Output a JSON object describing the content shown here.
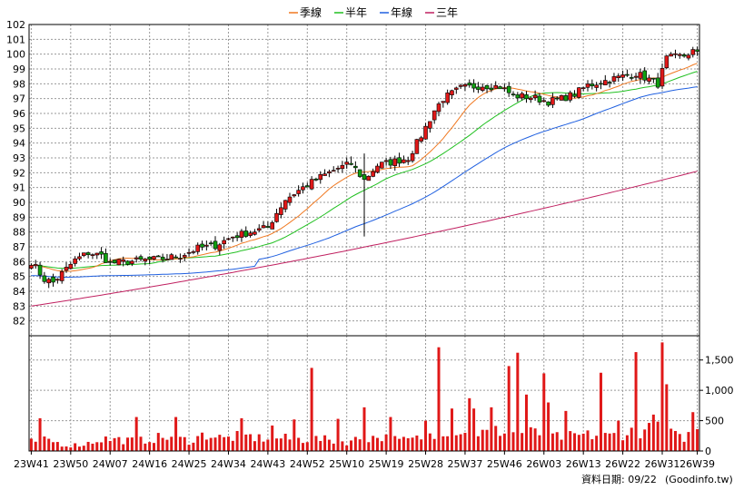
{
  "chart_data": {
    "type": "candlestick",
    "legend": {
      "placement": "top-center",
      "items": [
        {
          "key": "ma_quarter",
          "label": "季線",
          "color": "#f07820"
        },
        {
          "key": "ma_half",
          "label": "半年",
          "color": "#20c020"
        },
        {
          "key": "ma_year",
          "label": "年線",
          "color": "#2060e0"
        },
        {
          "key": "ma_3y",
          "label": "三年",
          "color": "#c02060"
        }
      ]
    },
    "price_axis": {
      "min": 81,
      "max": 102,
      "ticks": [
        82,
        83,
        84,
        85,
        86,
        87,
        88,
        89,
        90,
        91,
        92,
        93,
        94,
        95,
        96,
        97,
        98,
        99,
        100,
        101,
        102
      ]
    },
    "volume_axis": {
      "min": 0,
      "max": 1900,
      "ticks": [
        0,
        500,
        1000,
        1500
      ],
      "tick_labels": [
        "0",
        "500",
        "1,000",
        "1,500"
      ]
    },
    "x_labels": [
      {
        "index": 0,
        "label": "23W41"
      },
      {
        "index": 9,
        "label": "23W50"
      },
      {
        "index": 18,
        "label": "24W07"
      },
      {
        "index": 27,
        "label": "24W16"
      },
      {
        "index": 36,
        "label": "24W25"
      },
      {
        "index": 45,
        "label": "24W34"
      },
      {
        "index": 54,
        "label": "24W43"
      },
      {
        "index": 63,
        "label": "24W52"
      },
      {
        "index": 72,
        "label": "25W10"
      },
      {
        "index": 81,
        "label": "25W19"
      },
      {
        "index": 90,
        "label": "25W28"
      },
      {
        "index": 99,
        "label": "25W37"
      },
      {
        "index": 108,
        "label": "25W46"
      },
      {
        "index": 117,
        "label": "26W03"
      },
      {
        "index": 126,
        "label": "26W13"
      },
      {
        "index": 135,
        "label": "26W22"
      },
      {
        "index": 144,
        "label": "26W31"
      },
      {
        "index": 152,
        "label": "26W39"
      }
    ],
    "weeks": 153,
    "close_anchors": [
      [
        0,
        86.0
      ],
      [
        3,
        84.8
      ],
      [
        5,
        84.6
      ],
      [
        8,
        85.5
      ],
      [
        10,
        86.1
      ],
      [
        13,
        86.6
      ],
      [
        16,
        86.4
      ],
      [
        18,
        85.9
      ],
      [
        22,
        86.0
      ],
      [
        26,
        86.1
      ],
      [
        30,
        86.2
      ],
      [
        34,
        86.4
      ],
      [
        38,
        86.9
      ],
      [
        42,
        87.1
      ],
      [
        46,
        87.7
      ],
      [
        50,
        88.0
      ],
      [
        54,
        88.3
      ],
      [
        56,
        89.3
      ],
      [
        58,
        90.2
      ],
      [
        62,
        91.0
      ],
      [
        66,
        91.7
      ],
      [
        70,
        92.3
      ],
      [
        73,
        92.6
      ],
      [
        76,
        91.5
      ],
      [
        79,
        92.5
      ],
      [
        82,
        92.7
      ],
      [
        86,
        93.0
      ],
      [
        89,
        94.5
      ],
      [
        92,
        96.2
      ],
      [
        94,
        97.0
      ],
      [
        98,
        97.7
      ],
      [
        103,
        97.9
      ],
      [
        107,
        97.8
      ],
      [
        110,
        97.2
      ],
      [
        114,
        97.1
      ],
      [
        118,
        96.8
      ],
      [
        121,
        97.0
      ],
      [
        124,
        97.3
      ],
      [
        127,
        97.9
      ],
      [
        131,
        98.2
      ],
      [
        135,
        98.5
      ],
      [
        138,
        98.7
      ],
      [
        141,
        98.3
      ],
      [
        143,
        98.0
      ],
      [
        145,
        99.7
      ],
      [
        149,
        99.9
      ],
      [
        151,
        100.2
      ],
      [
        152,
        100.0
      ]
    ],
    "volume_anchors": [
      [
        0,
        150
      ],
      [
        4,
        180
      ],
      [
        8,
        90
      ],
      [
        12,
        110
      ],
      [
        16,
        200
      ],
      [
        20,
        190
      ],
      [
        24,
        160
      ],
      [
        28,
        210
      ],
      [
        32,
        230
      ],
      [
        36,
        170
      ],
      [
        40,
        280
      ],
      [
        44,
        200
      ],
      [
        48,
        260
      ],
      [
        52,
        210
      ],
      [
        56,
        220
      ],
      [
        60,
        190
      ],
      [
        64,
        200
      ],
      [
        68,
        180
      ],
      [
        72,
        150
      ],
      [
        76,
        220
      ],
      [
        80,
        230
      ],
      [
        84,
        170
      ],
      [
        88,
        200
      ],
      [
        92,
        330
      ],
      [
        96,
        390
      ],
      [
        100,
        320
      ],
      [
        104,
        290
      ],
      [
        108,
        350
      ],
      [
        112,
        320
      ],
      [
        116,
        280
      ],
      [
        120,
        230
      ],
      [
        124,
        250
      ],
      [
        128,
        260
      ],
      [
        132,
        240
      ],
      [
        136,
        310
      ],
      [
        140,
        340
      ],
      [
        144,
        360
      ],
      [
        148,
        210
      ],
      [
        152,
        310
      ]
    ],
    "volume_spikes": [
      [
        2,
        540
      ],
      [
        24,
        560
      ],
      [
        33,
        560
      ],
      [
        48,
        540
      ],
      [
        55,
        420
      ],
      [
        60,
        520
      ],
      [
        64,
        1370
      ],
      [
        70,
        530
      ],
      [
        76,
        720
      ],
      [
        82,
        560
      ],
      [
        90,
        500
      ],
      [
        93,
        1710
      ],
      [
        96,
        700
      ],
      [
        100,
        870
      ],
      [
        101,
        700
      ],
      [
        105,
        720
      ],
      [
        109,
        1400
      ],
      [
        111,
        1620
      ],
      [
        113,
        930
      ],
      [
        117,
        1280
      ],
      [
        118,
        800
      ],
      [
        122,
        660
      ],
      [
        130,
        1290
      ],
      [
        134,
        500
      ],
      [
        138,
        1630
      ],
      [
        142,
        600
      ],
      [
        144,
        1790
      ],
      [
        145,
        1100
      ],
      [
        151,
        640
      ]
    ],
    "ma_3y_endpoints": [
      [
        0,
        83.0
      ],
      [
        152,
        92.1
      ]
    ],
    "ma_windows": {
      "ma_quarter": 13,
      "ma_half": 26,
      "ma_year": 52
    }
  },
  "footer": {
    "source_label": "資料日期: 09/22",
    "site_label": "(Goodinfo.tw)"
  }
}
